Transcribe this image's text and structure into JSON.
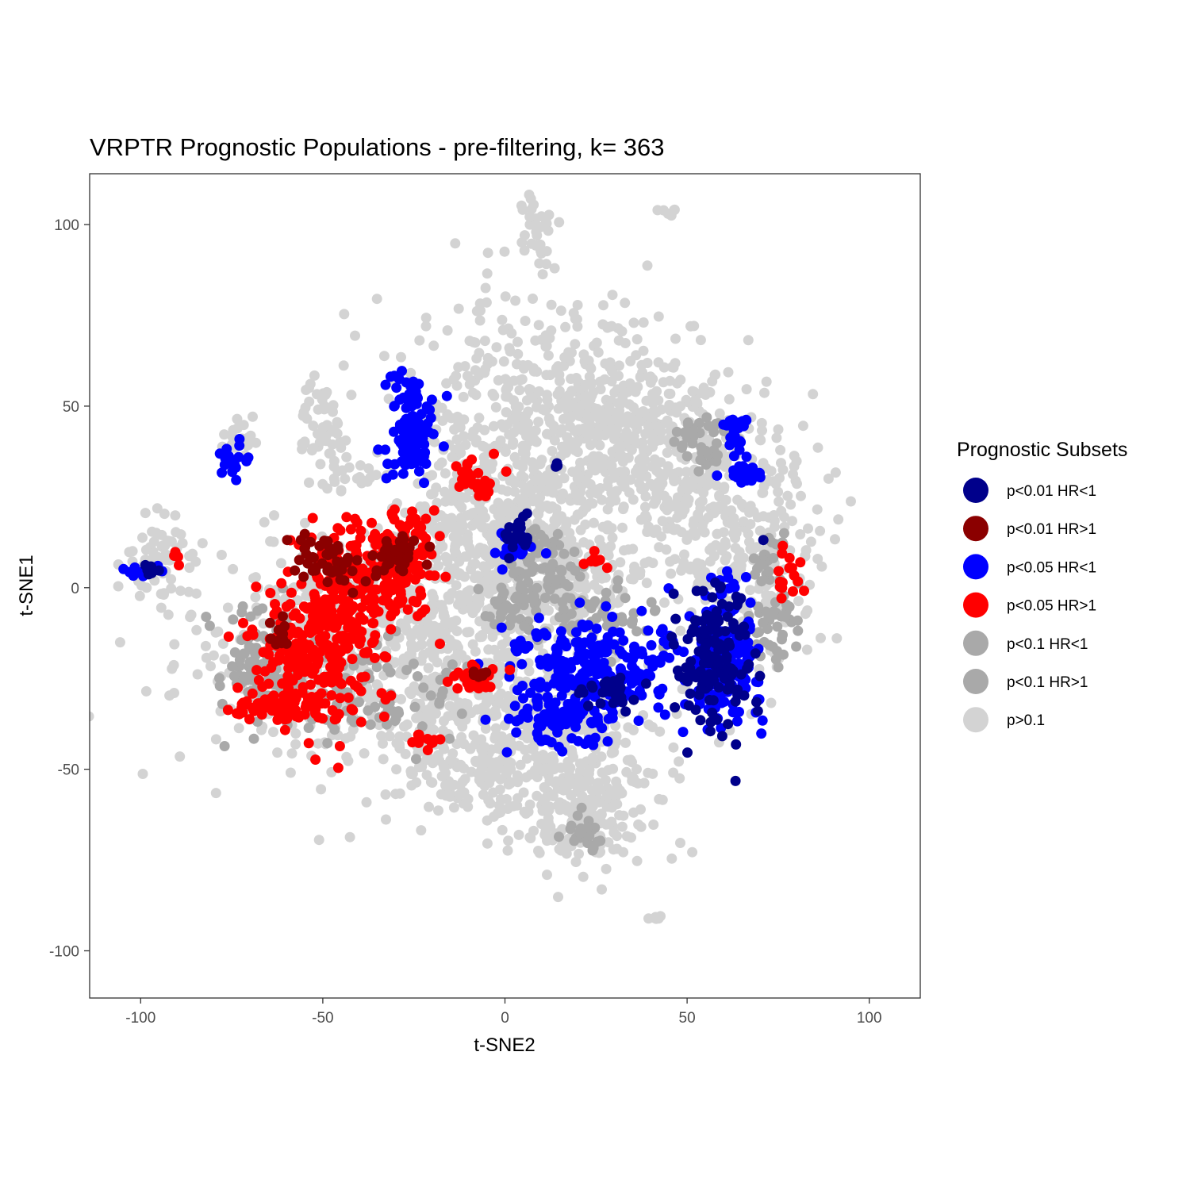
{
  "chart_data": {
    "type": "scatter",
    "title": "VRPTR Prognostic Populations - pre-filtering, k= 363",
    "xlabel": "t-SNE2",
    "ylabel": "t-SNE1",
    "xlim": [
      -114,
      114
    ],
    "ylim": [
      -113,
      114
    ],
    "x_ticks": [
      -100,
      -50,
      0,
      50,
      100
    ],
    "y_ticks": [
      -100,
      -50,
      0,
      50,
      100
    ],
    "x_tick_labels": [
      "-100",
      "-50",
      "0",
      "50",
      "100"
    ],
    "y_tick_labels": [
      "-100",
      "-50",
      "0",
      "50",
      "100"
    ],
    "grid": false,
    "legend": {
      "title": "Prognostic Subsets",
      "position": "right",
      "entries": [
        {
          "label": "p<0.01 HR<1",
          "color": "#00008B"
        },
        {
          "label": "p<0.01 HR>1",
          "color": "#8B0000"
        },
        {
          "label": "p<0.05 HR<1",
          "color": "#0000FF"
        },
        {
          "label": "p<0.05 HR>1",
          "color": "#FF0000"
        },
        {
          "label": "p<0.1 HR<1",
          "color": "#A9A9A9"
        },
        {
          "label": "p<0.1 HR>1",
          "color": "#A9A9A9"
        },
        {
          "label": "p>0.1",
          "color": "#D3D3D3"
        }
      ]
    },
    "series": [
      {
        "name": "p>0.1",
        "color": "#D3D3D3",
        "clusters": [
          {
            "cx": 8,
            "cy": 45,
            "sx": 20,
            "sy": 18,
            "n": 460
          },
          {
            "cx": 35,
            "cy": 45,
            "sx": 14,
            "sy": 12,
            "n": 240
          },
          {
            "cx": 50,
            "cy": 25,
            "sx": 14,
            "sy": 14,
            "n": 220
          },
          {
            "cx": 0,
            "cy": 15,
            "sx": 14,
            "sy": 14,
            "n": 320
          },
          {
            "cx": -10,
            "cy": -15,
            "sx": 16,
            "sy": 16,
            "n": 360
          },
          {
            "cx": 15,
            "cy": -45,
            "sx": 14,
            "sy": 14,
            "n": 300
          },
          {
            "cx": 22,
            "cy": -62,
            "sx": 9,
            "sy": 8,
            "n": 140
          },
          {
            "cx": -45,
            "cy": -20,
            "sx": 20,
            "sy": 16,
            "n": 380
          },
          {
            "cx": -10,
            "cy": -48,
            "sx": 10,
            "sy": 8,
            "n": 130
          },
          {
            "cx": 68,
            "cy": 10,
            "sx": 10,
            "sy": 16,
            "n": 180
          },
          {
            "cx": 20,
            "cy": 5,
            "sx": 10,
            "sy": 8,
            "n": 140
          },
          {
            "cx": -50,
            "cy": 42,
            "sx": 4,
            "sy": 7,
            "n": 60
          },
          {
            "cx": -96,
            "cy": 6,
            "sx": 6,
            "sy": 7,
            "n": 60
          },
          {
            "cx": 8,
            "cy": 98,
            "sx": 3,
            "sy": 4,
            "n": 30
          },
          {
            "cx": 46,
            "cy": 103,
            "sx": 1.5,
            "sy": 0.6,
            "n": 6
          },
          {
            "cx": 42,
            "cy": -91,
            "sx": 1.5,
            "sy": 0.6,
            "n": 6
          },
          {
            "cx": -72,
            "cy": 42,
            "sx": 3,
            "sy": 3,
            "n": 18
          },
          {
            "cx": -38,
            "cy": 30,
            "sx": 2,
            "sy": 2,
            "n": 8
          }
        ]
      },
      {
        "name": "p<0.1 HR<1",
        "color": "#A9A9A9",
        "clusters": [
          {
            "cx": -68,
            "cy": -20,
            "sx": 5,
            "sy": 8,
            "n": 90
          },
          {
            "cx": -35,
            "cy": -30,
            "sx": 14,
            "sy": 8,
            "n": 90
          },
          {
            "cx": 10,
            "cy": 5,
            "sx": 5,
            "sy": 6,
            "n": 60
          },
          {
            "cx": 55,
            "cy": 40,
            "sx": 4,
            "sy": 4,
            "n": 40
          },
          {
            "cx": 0,
            "cy": -5,
            "sx": 4,
            "sy": 3,
            "n": 25
          }
        ]
      },
      {
        "name": "p<0.1 HR>1",
        "color": "#A9A9A9",
        "clusters": [
          {
            "cx": 22,
            "cy": -8,
            "sx": 10,
            "sy": 5,
            "n": 70
          },
          {
            "cx": 74,
            "cy": -10,
            "sx": 4,
            "sy": 6,
            "n": 40
          },
          {
            "cx": 22,
            "cy": -68,
            "sx": 3,
            "sy": 3,
            "n": 25
          },
          {
            "cx": 72,
            "cy": 8,
            "sx": 3,
            "sy": 4,
            "n": 25
          }
        ]
      },
      {
        "name": "p<0.05 HR<1",
        "color": "#0000FF",
        "clusters": [
          {
            "cx": 25,
            "cy": -22,
            "sx": 12,
            "sy": 7,
            "n": 260
          },
          {
            "cx": 14,
            "cy": -37,
            "sx": 7,
            "sy": 3,
            "n": 70
          },
          {
            "cx": 60,
            "cy": -20,
            "sx": 5,
            "sy": 10,
            "n": 170
          },
          {
            "cx": -25,
            "cy": 47,
            "sx": 3,
            "sy": 6,
            "n": 70
          },
          {
            "cx": -26,
            "cy": 38,
            "sx": 3,
            "sy": 4,
            "n": 40
          },
          {
            "cx": 64,
            "cy": 42,
            "sx": 2,
            "sy": 3,
            "n": 28
          },
          {
            "cx": 65,
            "cy": 31,
            "sx": 2.5,
            "sy": 1.5,
            "n": 18
          },
          {
            "cx": -74,
            "cy": 35,
            "sx": 2,
            "sy": 3,
            "n": 20
          },
          {
            "cx": -100,
            "cy": 5,
            "sx": 2,
            "sy": 1,
            "n": 14
          },
          {
            "cx": 3,
            "cy": 12,
            "sx": 3,
            "sy": 3,
            "n": 22
          }
        ]
      },
      {
        "name": "p<0.05 HR>1",
        "color": "#FF0000",
        "clusters": [
          {
            "cx": -52,
            "cy": -18,
            "sx": 9,
            "sy": 10,
            "n": 260
          },
          {
            "cx": -40,
            "cy": 2,
            "sx": 7,
            "sy": 8,
            "n": 150
          },
          {
            "cx": -28,
            "cy": 8,
            "sx": 4,
            "sy": 7,
            "n": 110
          },
          {
            "cx": -62,
            "cy": -33,
            "sx": 5,
            "sy": 2,
            "n": 55
          },
          {
            "cx": -8,
            "cy": 30,
            "sx": 3,
            "sy": 3,
            "n": 30
          },
          {
            "cx": -8,
            "cy": -25,
            "sx": 4,
            "sy": 2,
            "n": 25
          },
          {
            "cx": -22,
            "cy": -42,
            "sx": 2,
            "sy": 1.5,
            "n": 12
          },
          {
            "cx": 24,
            "cy": 8,
            "sx": 1.5,
            "sy": 2,
            "n": 10
          },
          {
            "cx": 78,
            "cy": 5,
            "sx": 2,
            "sy": 4,
            "n": 16
          },
          {
            "cx": -90,
            "cy": 8,
            "sx": 1,
            "sy": 1,
            "n": 4
          }
        ]
      },
      {
        "name": "p<0.01 HR>1",
        "color": "#8B0000",
        "clusters": [
          {
            "cx": -48,
            "cy": 8,
            "sx": 4,
            "sy": 4,
            "n": 45
          },
          {
            "cx": -30,
            "cy": 10,
            "sx": 3,
            "sy": 3,
            "n": 40
          },
          {
            "cx": -63,
            "cy": -13,
            "sx": 2,
            "sy": 2,
            "n": 14
          },
          {
            "cx": -7,
            "cy": -24,
            "sx": 2,
            "sy": 1,
            "n": 8
          }
        ]
      },
      {
        "name": "p<0.01 HR<1",
        "color": "#00008B",
        "clusters": [
          {
            "cx": 58,
            "cy": -20,
            "sx": 5,
            "sy": 10,
            "n": 140
          },
          {
            "cx": 28,
            "cy": -29,
            "sx": 4,
            "sy": 3,
            "n": 30
          },
          {
            "cx": 4,
            "cy": 14,
            "sx": 2,
            "sy": 3,
            "n": 20
          },
          {
            "cx": -97,
            "cy": 5,
            "sx": 1.5,
            "sy": 1,
            "n": 8
          },
          {
            "cx": 14,
            "cy": 34,
            "sx": 0.6,
            "sy": 0.6,
            "n": 3
          }
        ]
      }
    ]
  }
}
